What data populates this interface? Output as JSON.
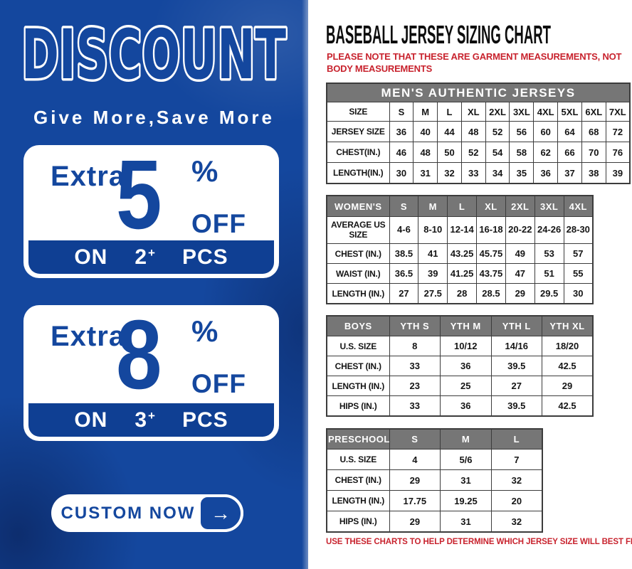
{
  "colors": {
    "panel_blue": "#14479E",
    "bar_blue": "#0F3F93",
    "header_gray": "#767676",
    "note_red": "#C8232E",
    "text_black": "#151515"
  },
  "left_panel": {
    "title": "DISCOUNT",
    "subtitle": "Give More,Save More",
    "offers": [
      {
        "prefix": "Extra",
        "value": "5",
        "percent": "%",
        "off_label": "OFF",
        "on_label": "ON",
        "qty": "2",
        "plus": "+",
        "pcs_label": "PCS"
      },
      {
        "prefix": "Extra",
        "value": "8",
        "percent": "%",
        "off_label": "OFF",
        "on_label": "ON",
        "qty": "3",
        "plus": "+",
        "pcs_label": "PCS"
      }
    ],
    "cta": {
      "label": "CUSTOM NOW",
      "arrow": "→"
    }
  },
  "right_panel": {
    "title": "BASEBALL JERSEY SIZING CHART",
    "note": "PLEASE NOTE THAT THESE ARE GARMENT MEASUREMENTS, NOT BODY MEASUREMENTS",
    "footer_note": "USE THESE CHARTS TO HELP DETERMINE WHICH JERSEY SIZE WILL BEST FIT YOU.",
    "tables": [
      {
        "name": "mens",
        "banner": "MEN'S AUTHENTIC JERSEYS",
        "rows": [
          [
            "SIZE",
            "S",
            "M",
            "L",
            "XL",
            "2XL",
            "3XL",
            "4XL",
            "5XL",
            "6XL",
            "7XL"
          ],
          [
            "JERSEY SIZE",
            "36",
            "40",
            "44",
            "48",
            "52",
            "56",
            "60",
            "64",
            "68",
            "72"
          ],
          [
            "CHEST(IN.)",
            "46",
            "48",
            "50",
            "52",
            "54",
            "58",
            "62",
            "66",
            "70",
            "76"
          ],
          [
            "LENGTH(IN.)",
            "30",
            "31",
            "32",
            "33",
            "34",
            "35",
            "36",
            "37",
            "38",
            "39"
          ]
        ]
      },
      {
        "name": "womens",
        "header": [
          "WOMEN'S",
          "S",
          "M",
          "L",
          "XL",
          "2XL",
          "3XL",
          "4XL"
        ],
        "rows": [
          [
            "AVERAGE US SIZE",
            "4-6",
            "8-10",
            "12-14",
            "16-18",
            "20-22",
            "24-26",
            "28-30"
          ],
          [
            "CHEST (IN.)",
            "38.5",
            "41",
            "43.25",
            "45.75",
            "49",
            "53",
            "57"
          ],
          [
            "WAIST (IN.)",
            "36.5",
            "39",
            "41.25",
            "43.75",
            "47",
            "51",
            "55"
          ],
          [
            "LENGTH (IN.)",
            "27",
            "27.5",
            "28",
            "28.5",
            "29",
            "29.5",
            "30"
          ]
        ]
      },
      {
        "name": "boys",
        "header": [
          "BOYS",
          "YTH S",
          "YTH M",
          "YTH L",
          "YTH XL"
        ],
        "rows": [
          [
            "U.S. SIZE",
            "8",
            "10/12",
            "14/16",
            "18/20"
          ],
          [
            "CHEST (IN.)",
            "33",
            "36",
            "39.5",
            "42.5"
          ],
          [
            "LENGTH (IN.)",
            "23",
            "25",
            "27",
            "29"
          ],
          [
            "HIPS (IN.)",
            "33",
            "36",
            "39.5",
            "42.5"
          ]
        ]
      },
      {
        "name": "preschool",
        "header": [
          "PRESCHOOL",
          "S",
          "M",
          "L"
        ],
        "rows": [
          [
            "U.S. SIZE",
            "4",
            "5/6",
            "7"
          ],
          [
            "CHEST (IN.)",
            "29",
            "31",
            "32"
          ],
          [
            "LENGTH (IN.)",
            "17.75",
            "19.25",
            "20"
          ],
          [
            "HIPS (IN.)",
            "29",
            "31",
            "32"
          ]
        ]
      }
    ]
  }
}
